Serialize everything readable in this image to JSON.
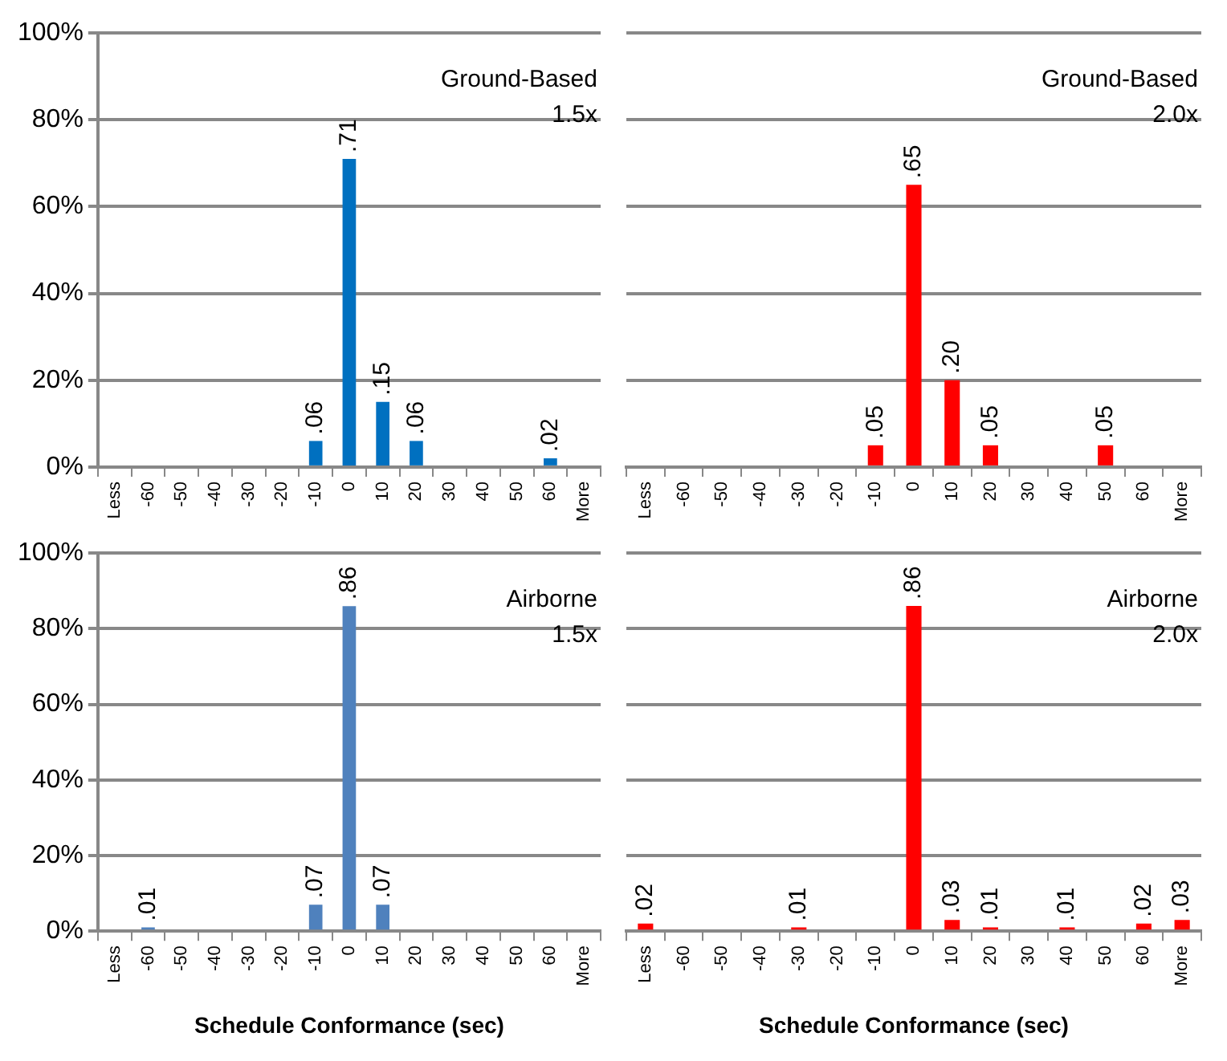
{
  "chart_data": [
    {
      "type": "bar",
      "categories": [
        "Less",
        "-60",
        "-50",
        "-40",
        "-30",
        "-20",
        "-10",
        "0",
        "10",
        "20",
        "30",
        "40",
        "50",
        "60",
        "More"
      ],
      "values": [
        0,
        0,
        0,
        0,
        0,
        0,
        0.06,
        0.71,
        0.15,
        0.06,
        0,
        0,
        0,
        0.02,
        0
      ],
      "value_labels": [
        null,
        null,
        null,
        null,
        null,
        null,
        ".06",
        ".71",
        ".15",
        ".06",
        null,
        null,
        null,
        ".02",
        null
      ],
      "color": "#0070c0",
      "ylim": [
        0,
        1
      ],
      "yticks": [
        {
          "value": 0,
          "label": "0%"
        },
        {
          "value": 0.2,
          "label": "20%"
        },
        {
          "value": 0.4,
          "label": "40%"
        },
        {
          "value": 0.6,
          "label": "60%"
        },
        {
          "value": 0.8,
          "label": "80%"
        },
        {
          "value": 1,
          "label": "100%"
        }
      ],
      "grid": "y",
      "annotations": [
        "Ground-Based",
        "1.5x"
      ]
    },
    {
      "type": "bar",
      "categories": [
        "Less",
        "-60",
        "-50",
        "-40",
        "-30",
        "-20",
        "-10",
        "0",
        "10",
        "20",
        "30",
        "40",
        "50",
        "60",
        "More"
      ],
      "values": [
        0,
        0,
        0,
        0,
        0,
        0,
        0.05,
        0.65,
        0.2,
        0.05,
        0,
        0,
        0.05,
        0,
        0
      ],
      "value_labels": [
        null,
        null,
        null,
        null,
        null,
        null,
        ".05",
        ".65",
        ".20",
        ".05",
        null,
        null,
        ".05",
        null,
        null
      ],
      "color": "#ff0000",
      "ylim": [
        0,
        1
      ],
      "yticks": [
        {
          "value": 0,
          "label": null
        },
        {
          "value": 0.2,
          "label": null
        },
        {
          "value": 0.4,
          "label": null
        },
        {
          "value": 0.6,
          "label": null
        },
        {
          "value": 0.8,
          "label": null
        },
        {
          "value": 1,
          "label": null
        }
      ],
      "grid": "y",
      "tick_labels": "x",
      "annotations": [
        "Ground-Based",
        "2.0x"
      ]
    },
    {
      "type": "bar",
      "categories": [
        "Less",
        "-60",
        "-50",
        "-40",
        "-30",
        "-20",
        "-10",
        "0",
        "10",
        "20",
        "30",
        "40",
        "50",
        "60",
        "More"
      ],
      "values": [
        0,
        0.01,
        0,
        0,
        0,
        0,
        0.07,
        0.86,
        0.07,
        0,
        0,
        0,
        0,
        0,
        0
      ],
      "value_labels": [
        null,
        ".01",
        null,
        null,
        null,
        null,
        ".07",
        ".86",
        ".07",
        null,
        null,
        null,
        null,
        null,
        null
      ],
      "color": "#4f81bd",
      "ylim": [
        0,
        1
      ],
      "yticks": [
        {
          "value": 0,
          "label": "0%"
        },
        {
          "value": 0.2,
          "label": "20%"
        },
        {
          "value": 0.4,
          "label": "40%"
        },
        {
          "value": 0.6,
          "label": "60%"
        },
        {
          "value": 0.8,
          "label": "80%"
        },
        {
          "value": 1,
          "label": "100%"
        }
      ],
      "grid": "y",
      "xlabel": "Schedule Conformance (sec)",
      "annotations": [
        "Airborne",
        "1.5x"
      ]
    },
    {
      "type": "bar",
      "categories": [
        "Less",
        "-60",
        "-50",
        "-40",
        "-30",
        "-20",
        "-10",
        "0",
        "10",
        "20",
        "30",
        "40",
        "50",
        "60",
        "More"
      ],
      "values": [
        0.02,
        0,
        0,
        0,
        0.01,
        0,
        0,
        0.86,
        0.03,
        0.01,
        0,
        0.01,
        0,
        0.02,
        0.03
      ],
      "value_labels": [
        ".02",
        null,
        null,
        null,
        ".01",
        null,
        null,
        ".86",
        ".03",
        ".01",
        null,
        ".01",
        null,
        ".02",
        ".03"
      ],
      "color": "#ff0000",
      "ylim": [
        0,
        1
      ],
      "yticks": [
        {
          "value": 0,
          "label": null
        },
        {
          "value": 0.2,
          "label": null
        },
        {
          "value": 0.4,
          "label": null
        },
        {
          "value": 0.6,
          "label": null
        },
        {
          "value": 0.8,
          "label": null
        },
        {
          "value": 1,
          "label": null
        }
      ],
      "grid": "y",
      "tick_labels": "x",
      "xlabel": "Schedule Conformance (sec)",
      "annotations": [
        "Airborne",
        "2.0x"
      ]
    }
  ]
}
